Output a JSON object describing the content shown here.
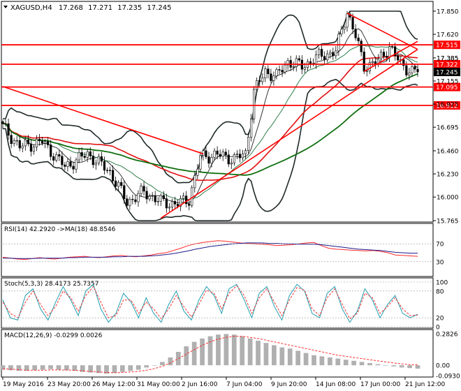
{
  "header": {
    "symbol": "XAGUSD,H4",
    "open": "17.268",
    "high": "17.271",
    "low": "17.235",
    "close": "17.245"
  },
  "colors": {
    "candle": "#000000",
    "bollinger": "#1f2a2a",
    "ma_fast": "#2f7d4a",
    "ma_red": "#e01010",
    "ma_green": "#0f6e0f",
    "level_line": "#ff0000",
    "price_tag": "#ff0000",
    "current_tag": "#000000",
    "rsi": "#ff2a2a",
    "rsi_ma": "#1c1c8c",
    "stoch_main": "#20a0b0",
    "stoch_signal": "#ff2a2a",
    "macd_hist": "#b0b0b0",
    "macd_signal": "#ff2a2a"
  },
  "chart_data": [
    {
      "type": "candlestick",
      "panel": "price",
      "y_ticks": [
        "17.850",
        "17.620",
        "17.385",
        "17.155",
        "16.925",
        "16.695",
        "16.460",
        "16.230",
        "16.000",
        "15.765"
      ],
      "ylim": [
        15.765,
        17.85
      ],
      "x_labels": [
        "19 May 2016",
        "23 May 20:00",
        "26 May 12:00",
        "31 May 00:00",
        "2 Jun 16:00",
        "7 Jun 04:00",
        "9 Jun 20:00",
        "14 Jun 08:00",
        "17 Jun 00:00",
        "21 Jun 12:00"
      ],
      "levels": [
        {
          "label": "17.515",
          "value": 17.515
        },
        {
          "label": "17.322",
          "value": 17.322
        },
        {
          "label": "17.095",
          "value": 17.095
        },
        {
          "label": "16.912",
          "value": 16.912
        }
      ],
      "current_price": {
        "label": "17.245",
        "value": 17.245
      },
      "extra_tick": {
        "label": "17.385",
        "value": 17.385
      },
      "ohlc_anchors": [
        {
          "i": 0,
          "c": 16.7
        },
        {
          "i": 6,
          "c": 16.5
        },
        {
          "i": 14,
          "c": 16.55
        },
        {
          "i": 22,
          "c": 16.3
        },
        {
          "i": 30,
          "c": 16.43
        },
        {
          "i": 38,
          "c": 16.25
        },
        {
          "i": 44,
          "c": 15.95
        },
        {
          "i": 50,
          "c": 16.05
        },
        {
          "i": 56,
          "c": 15.95
        },
        {
          "i": 62,
          "c": 15.93
        },
        {
          "i": 66,
          "c": 15.98
        },
        {
          "i": 70,
          "c": 16.4
        },
        {
          "i": 76,
          "c": 16.42
        },
        {
          "i": 82,
          "c": 16.38
        },
        {
          "i": 86,
          "c": 16.43
        },
        {
          "i": 89,
          "c": 17.05
        },
        {
          "i": 93,
          "c": 17.25
        },
        {
          "i": 97,
          "c": 17.2
        },
        {
          "i": 101,
          "c": 17.35
        },
        {
          "i": 106,
          "c": 17.3
        },
        {
          "i": 112,
          "c": 17.4
        },
        {
          "i": 118,
          "c": 17.45
        },
        {
          "i": 122,
          "c": 17.85
        },
        {
          "i": 125,
          "c": 17.6
        },
        {
          "i": 128,
          "c": 17.3
        },
        {
          "i": 133,
          "c": 17.35
        },
        {
          "i": 137,
          "c": 17.5
        },
        {
          "i": 141,
          "c": 17.32
        },
        {
          "i": 145,
          "c": 17.25
        },
        {
          "i": 147,
          "c": 17.245
        }
      ]
    },
    {
      "type": "line",
      "panel": "rsi",
      "title": "RSI(14) 42.2920  ->MA(18) 48.8546",
      "y_ticks": [
        "70",
        "30"
      ],
      "ylim": [
        0,
        100
      ],
      "series": [
        {
          "name": "RSI(14)",
          "values": [
            40,
            38,
            36,
            35,
            37,
            39,
            37,
            36,
            38,
            40,
            41,
            42,
            40,
            39,
            41,
            43,
            44,
            42,
            41,
            43,
            45,
            48,
            50,
            55,
            60,
            66,
            70,
            73,
            75,
            77,
            76,
            74,
            72,
            71,
            70,
            69,
            68,
            66,
            67,
            68,
            70,
            72,
            73,
            66,
            60,
            58,
            57,
            56,
            55,
            54,
            55,
            53,
            50,
            45,
            44,
            43,
            42
          ]
        },
        {
          "name": "MA(18)",
          "values": [
            38,
            38,
            37,
            37,
            37,
            38,
            38,
            38,
            38,
            39,
            39,
            40,
            40,
            40,
            40,
            41,
            41,
            42,
            42,
            42,
            43,
            44,
            46,
            48,
            51,
            54,
            58,
            61,
            64,
            66,
            68,
            70,
            71,
            72,
            72,
            72,
            71,
            71,
            70,
            70,
            69,
            69,
            69,
            68,
            66,
            64,
            62,
            60,
            58,
            57,
            56,
            55,
            53,
            51,
            50,
            49,
            49
          ]
        }
      ]
    },
    {
      "type": "line",
      "panel": "stochastic",
      "title": "Stoch(5,3,3) 28.4173 25.7357",
      "y_ticks": [
        "100",
        "80",
        "20",
        "0"
      ],
      "ylim": [
        0,
        100
      ],
      "series": [
        {
          "name": "%K",
          "values": [
            60,
            20,
            15,
            70,
            85,
            40,
            15,
            55,
            90,
            60,
            25,
            80,
            95,
            40,
            10,
            30,
            75,
            55,
            20,
            65,
            30,
            10,
            50,
            80,
            35,
            15,
            60,
            90,
            70,
            30,
            85,
            95,
            60,
            20,
            75,
            90,
            45,
            15,
            70,
            95,
            80,
            30,
            20,
            75,
            90,
            40,
            10,
            35,
            85,
            60,
            20,
            50,
            70,
            30,
            20,
            28
          ]
        },
        {
          "name": "%D",
          "values": [
            55,
            30,
            20,
            55,
            80,
            50,
            25,
            45,
            80,
            65,
            35,
            70,
            90,
            55,
            20,
            25,
            60,
            60,
            30,
            55,
            40,
            18,
            40,
            70,
            45,
            22,
            50,
            82,
            75,
            40,
            75,
            92,
            70,
            30,
            65,
            85,
            55,
            25,
            60,
            88,
            82,
            40,
            25,
            65,
            85,
            50,
            18,
            30,
            75,
            65,
            30,
            45,
            65,
            40,
            25,
            26
          ]
        }
      ]
    },
    {
      "type": "bar",
      "panel": "macd",
      "title": "MACD(12,26,9) -0.0299 0.0026",
      "y_ticks": [
        "0.2826",
        "0.00",
        "-0.0930"
      ],
      "ylim": [
        -0.093,
        0.2826
      ],
      "series": [
        {
          "name": "MACD",
          "values": [
            -0.04,
            -0.045,
            -0.05,
            -0.05,
            -0.045,
            -0.04,
            -0.035,
            -0.04,
            -0.045,
            -0.05,
            -0.06,
            -0.065,
            -0.07,
            -0.075,
            -0.07,
            -0.06,
            -0.05,
            -0.04,
            -0.02,
            0.0,
            0.03,
            0.07,
            0.12,
            0.17,
            0.21,
            0.24,
            0.26,
            0.275,
            0.28,
            0.275,
            0.26,
            0.24,
            0.22,
            0.2,
            0.18,
            0.16,
            0.15,
            0.13,
            0.11,
            0.09,
            0.08,
            0.07,
            0.06,
            0.05,
            0.04,
            0.03,
            0.02,
            0.01,
            0.0,
            -0.01,
            -0.02,
            -0.025,
            -0.03
          ]
        },
        {
          "name": "Signal",
          "values": [
            -0.03,
            -0.035,
            -0.04,
            -0.045,
            -0.045,
            -0.045,
            -0.042,
            -0.042,
            -0.043,
            -0.045,
            -0.05,
            -0.055,
            -0.06,
            -0.065,
            -0.067,
            -0.065,
            -0.06,
            -0.055,
            -0.045,
            -0.03,
            -0.01,
            0.02,
            0.06,
            0.1,
            0.14,
            0.18,
            0.21,
            0.235,
            0.25,
            0.26,
            0.26,
            0.25,
            0.24,
            0.225,
            0.21,
            0.195,
            0.18,
            0.165,
            0.15,
            0.135,
            0.12,
            0.105,
            0.09,
            0.08,
            0.07,
            0.06,
            0.05,
            0.04,
            0.03,
            0.02,
            0.012,
            0.006,
            0.0026
          ]
        }
      ]
    }
  ]
}
